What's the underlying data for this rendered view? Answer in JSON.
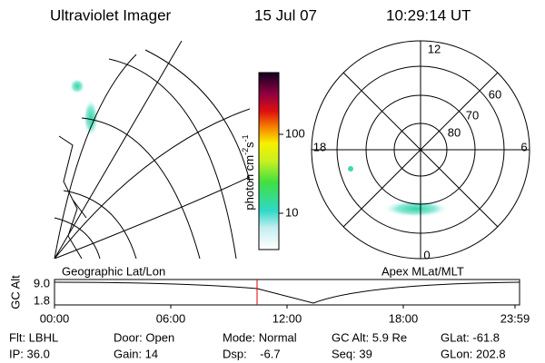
{
  "header": {
    "title": "Ultraviolet Imager",
    "date": "15 Jul 07",
    "time": "10:29:14 UT"
  },
  "colorbar": {
    "label": "photon cm",
    "exp1": "-2",
    "unit2": "s",
    "exp2": "-1",
    "ticks": [
      "100",
      "10"
    ]
  },
  "polar": {
    "mlt": [
      "12",
      "18",
      "6",
      "0"
    ],
    "mlat": [
      "60",
      "70",
      "80"
    ]
  },
  "timeline": {
    "left_title": "Geographic Lat/Lon",
    "right_title": "Apex MLat/MLT",
    "ylabel": "GC Alt",
    "yticks": [
      "9.0",
      "1.8"
    ],
    "xticks": [
      "00:00",
      "06:00",
      "12:00",
      "18:00",
      "23:59"
    ]
  },
  "status": {
    "rows": [
      [
        "Flt: LBHL",
        "Door: Open",
        "Mode: Normal",
        "GC Alt: 5.9 Re",
        "GLat: -61.8"
      ],
      [
        "IP: 36.0",
        "Gain: 14",
        "Dsp:    -6.7",
        "Seq: 39",
        "GLon: 202.8"
      ]
    ]
  }
}
